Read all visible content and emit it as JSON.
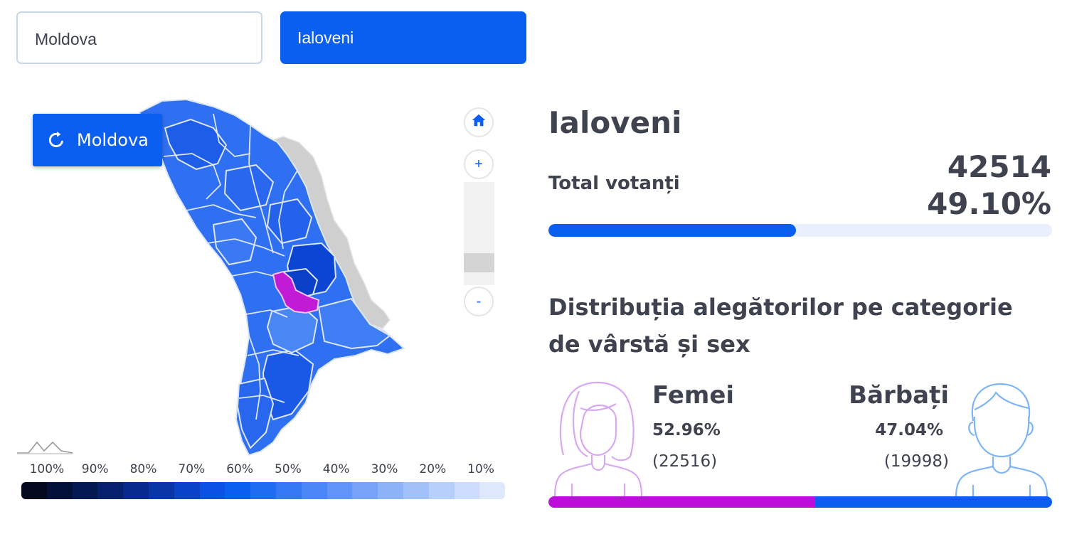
{
  "tabs": {
    "country": "Moldova",
    "region": "Ialoveni"
  },
  "map": {
    "reset_label": "Moldova",
    "zoom_in": "+",
    "zoom_out": "-",
    "zoom_level": 0.15,
    "colors": {
      "highlight": "#c21bd6",
      "inactive": "#cfcfcf",
      "borders": "#dce6f5"
    }
  },
  "legend": {
    "labels": [
      "100%",
      "90%",
      "80%",
      "70%",
      "60%",
      "50%",
      "40%",
      "30%",
      "20%",
      "10%"
    ],
    "colors": [
      "#02081e",
      "#03103a",
      "#041854",
      "#06206e",
      "#072a8c",
      "#0835a8",
      "#0a43c8",
      "#0b52e4",
      "#0a5ef0",
      "#1f6cf3",
      "#3478f4",
      "#4a86f5",
      "#6094f6",
      "#76a3f7",
      "#8cb2f8",
      "#a2c1f9",
      "#b6cffb",
      "#cbdcfc",
      "#dde8fd"
    ]
  },
  "region": {
    "title": "Ialoveni",
    "total_label": "Total votanți",
    "total_voters": "42514",
    "turnout_pct": "49.10%",
    "turnout_fraction": 0.491
  },
  "distribution": {
    "title": "Distribuția alegătorilor pe categorie de vârstă și sex",
    "female": {
      "label": "Femei",
      "pct": "52.96%",
      "count": "(22516)",
      "fraction": 0.5296,
      "color": "#bb0ed8"
    },
    "male": {
      "label": "Bărbați",
      "pct": "47.04%",
      "count": "(19998)",
      "fraction": 0.4704,
      "color": "#0a5ef0"
    }
  }
}
